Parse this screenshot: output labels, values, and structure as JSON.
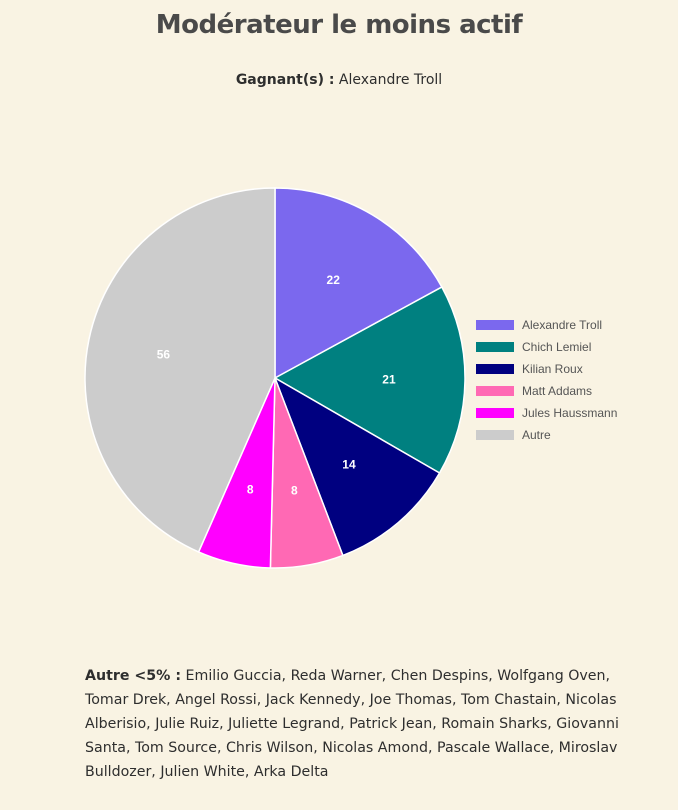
{
  "title": "Modérateur le moins actif",
  "winners": {
    "label": "Gagnant(s) :",
    "value": "Alexandre Troll"
  },
  "chart_data": {
    "type": "pie",
    "categories": [
      "Alexandre Troll",
      "Chich Lemiel",
      "Kilian Roux",
      "Matt Addams",
      "Jules Haussmann",
      "Autre"
    ],
    "values": [
      22,
      21,
      14,
      8,
      8,
      56
    ],
    "colors": [
      "#7b68ee",
      "#008080",
      "#000080",
      "#ff69b4",
      "#ff00ff",
      "#cccccc"
    ],
    "legend_position": "right"
  },
  "others": {
    "label": "Autre <5% :",
    "value": "Emilio Guccia, Reda Warner, Chen Despins, Wolfgang Oven, Tomar Drek, Angel Rossi, Jack Kennedy, Joe Thomas, Tom Chastain, Nicolas Alberisio, Julie Ruiz, Juliette Legrand, Patrick Jean, Romain Sharks, Giovanni Santa, Tom Source, Chris Wilson, Nicolas Amond, Pascale Wallace, Miroslav Bulldozer, Julien White, Arka Delta"
  }
}
